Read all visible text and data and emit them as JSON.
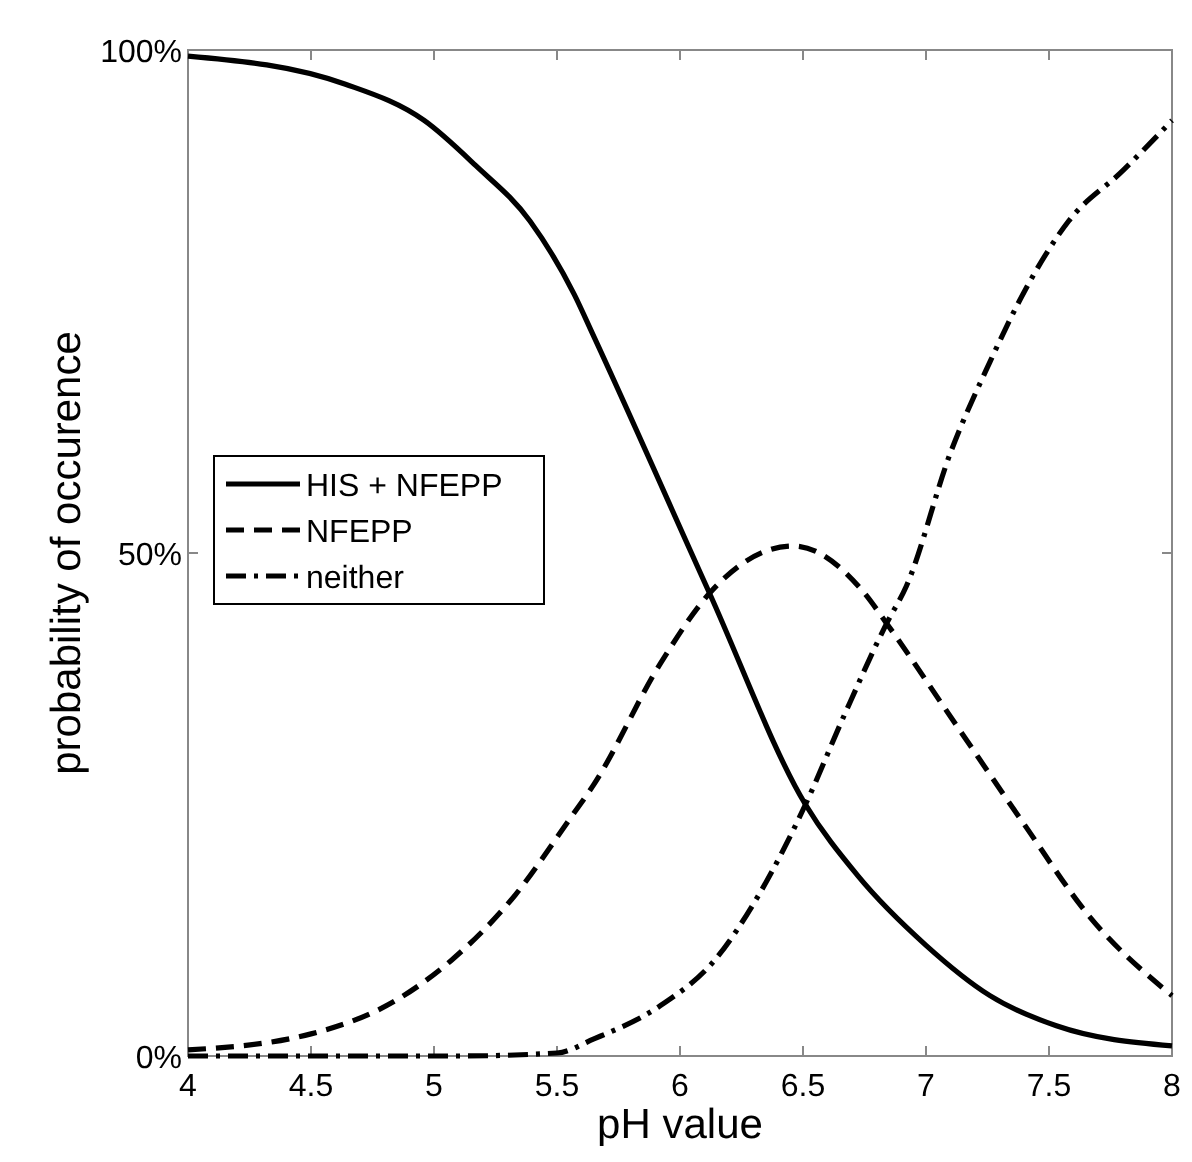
{
  "chart_data": {
    "type": "line",
    "xlabel": "pH value",
    "ylabel": "probability of occurence",
    "xlim": [
      4,
      8
    ],
    "ylim": [
      0,
      100
    ],
    "xticks": [
      4,
      4.5,
      5,
      5.5,
      6,
      6.5,
      7,
      7.5,
      8
    ],
    "yticks": [
      {
        "value": 0,
        "label": "0%"
      },
      {
        "value": 50,
        "label": "50%"
      },
      {
        "value": 100,
        "label": "100%"
      }
    ],
    "grid": false,
    "legend": "left",
    "marker": "none",
    "series": [
      {
        "name": "HIS + NFEPP",
        "color": "#000000",
        "line_style": "solid",
        "x": [
          4,
          4.64,
          4.96,
          5.17,
          5.39,
          5.57,
          5.65,
          6.12,
          6.51,
          6.72,
          7.0,
          7.26,
          7.53,
          8
        ],
        "values": [
          99.4,
          96.6,
          93,
          88.5,
          83,
          75.7,
          71.5,
          46,
          25,
          18,
          11,
          6,
          3,
          1
        ]
      },
      {
        "name": "NFEPP",
        "color": "#000000",
        "line_style": "dashed",
        "x": [
          4,
          4.5,
          4.85,
          5.07,
          5.33,
          5.55,
          5.65,
          5.92,
          6.12,
          6.46,
          6.75,
          6.84,
          7.12,
          7.4,
          7.66,
          8
        ],
        "values": [
          0.6,
          2.2,
          5.6,
          9.5,
          16,
          23.5,
          27,
          39,
          46,
          50.7,
          46,
          43,
          33,
          23,
          14,
          6
        ]
      },
      {
        "name": "neither",
        "color": "#000000",
        "line_style": "dashdot",
        "x": [
          4,
          5.1,
          5.5,
          5.65,
          5.92,
          6.14,
          6.32,
          6.51,
          6.67,
          6.84,
          6.92,
          7.1,
          7.26,
          7.4,
          7.58,
          7.8,
          8
        ],
        "values": [
          0,
          0,
          0.3,
          1.7,
          5,
          9.5,
          16,
          25,
          34,
          43,
          46.7,
          60,
          69,
          76,
          83,
          88,
          93
        ]
      }
    ]
  }
}
